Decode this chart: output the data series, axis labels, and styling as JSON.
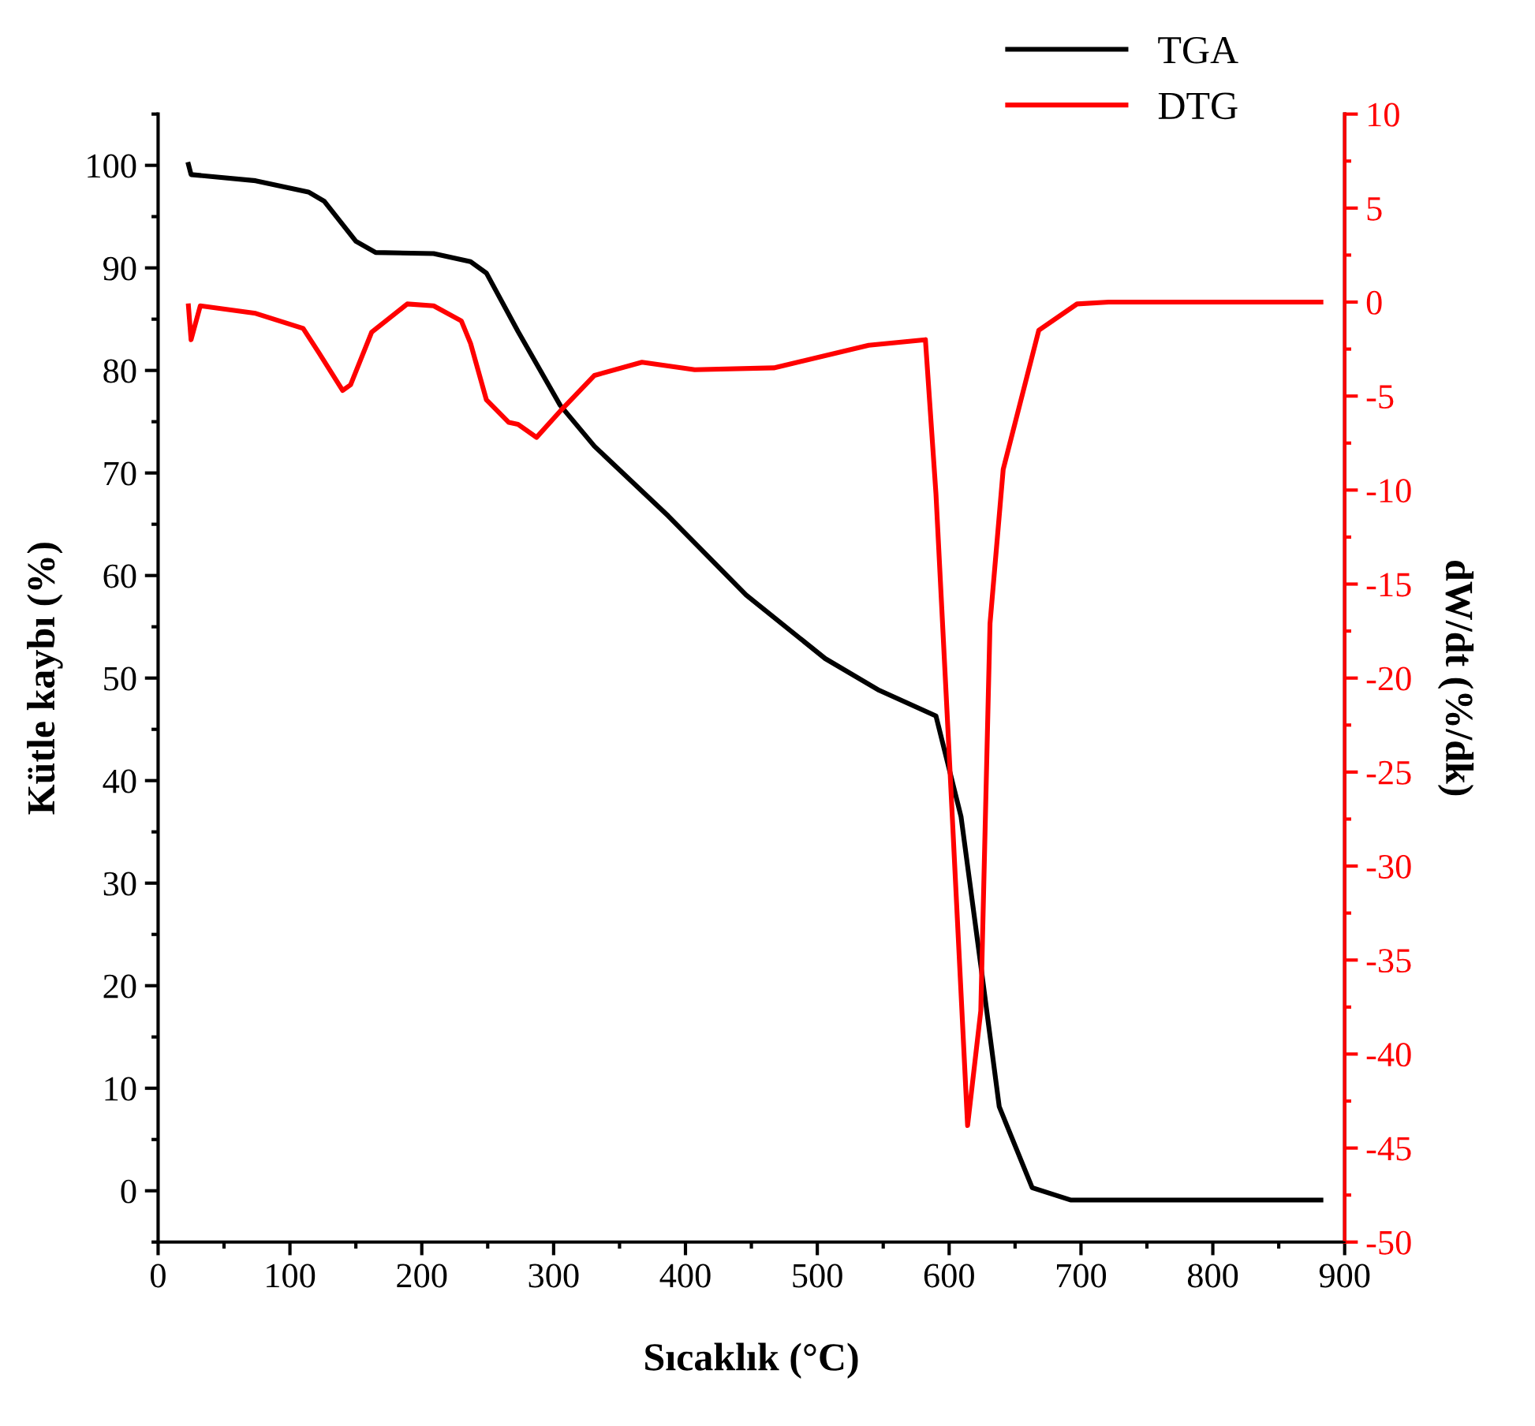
{
  "chart_data": {
    "type": "line",
    "xlabel": "Sıcaklık (°C)",
    "ylabel": "Kütle kaybı (%)",
    "y2label": "dW/dt (%/dk)",
    "xlim": [
      0,
      900
    ],
    "xticks": [
      0,
      100,
      200,
      300,
      400,
      500,
      600,
      700,
      800,
      900
    ],
    "ylim": [
      -5,
      105
    ],
    "yticks": [
      0,
      10,
      20,
      30,
      40,
      50,
      60,
      70,
      80,
      90,
      100
    ],
    "y2lim": [
      -50,
      10
    ],
    "y2ticks": [
      -50,
      -45,
      -40,
      -35,
      -30,
      -25,
      -20,
      -15,
      -10,
      -5,
      0,
      5,
      10
    ],
    "grid": false,
    "legend": "top right",
    "marker": "none",
    "line_style": "solid",
    "series": [
      {
        "name": "TGA",
        "color": "#000000",
        "x": [
          23,
          25,
          74,
          114,
          126,
          150,
          165,
          209,
          237,
          249,
          273,
          305,
          331,
          387,
          446,
          506,
          547,
          590,
          609,
          624,
          638,
          663,
          692,
          882
        ],
        "values": [
          100.1,
          99.1,
          98.5,
          97.4,
          96.5,
          92.6,
          91.5,
          91.4,
          90.6,
          89.5,
          83.8,
          76.6,
          72.6,
          65.8,
          58.1,
          51.9,
          48.8,
          46.3,
          36.5,
          22.0,
          8.2,
          0.3,
          -0.9,
          -0.9
        ]
      },
      {
        "name": "DTG",
        "color": "#ff0000",
        "axis": "y2",
        "x": [
          23,
          25,
          32,
          74,
          110,
          122,
          140,
          146,
          162,
          189,
          209,
          230,
          237,
          249,
          266,
          273,
          287,
          305,
          331,
          367,
          407,
          467,
          539,
          582,
          590,
          600,
          614,
          624,
          631,
          641,
          668,
          697,
          721,
          882
        ],
        "values": [
          -0.2,
          -2.0,
          -0.2,
          -0.6,
          -1.4,
          -2.7,
          -4.7,
          -4.4,
          -1.6,
          -0.1,
          -0.2,
          -1.0,
          -2.2,
          -5.2,
          -6.4,
          -6.5,
          -7.2,
          -5.8,
          -3.9,
          -3.2,
          -3.6,
          -3.5,
          -2.3,
          -2.0,
          -10.2,
          -24,
          -43.8,
          -37.7,
          -17.1,
          -8.9,
          -1.5,
          -0.1,
          0,
          0
        ]
      }
    ]
  }
}
